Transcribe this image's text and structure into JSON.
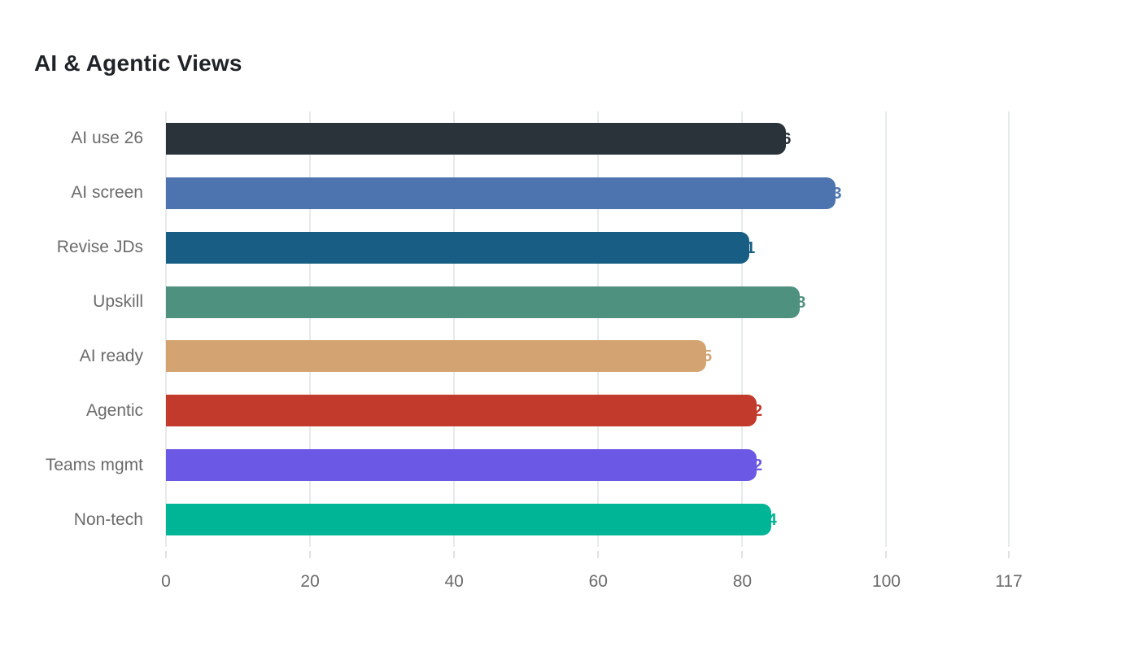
{
  "chart_data": {
    "type": "bar",
    "orientation": "horizontal",
    "title": "AI & Agentic Views",
    "categories": [
      "AI use 26",
      "AI screen",
      "Revise JDs",
      "Upskill",
      "AI ready",
      "Agentic",
      "Teams mgmt",
      "Non-tech"
    ],
    "values": [
      86,
      93,
      81,
      88,
      75,
      82,
      82,
      84
    ],
    "bar_colors": [
      "#2b333a",
      "#4d74ae",
      "#185e84",
      "#4f917f",
      "#d3a472",
      "#c23a2b",
      "#6b59e6",
      "#00b596"
    ],
    "value_label_style": "at-bar-end-same-color",
    "xlabel": "",
    "ylabel": "",
    "xlim": [
      0,
      117
    ],
    "xticks": [
      "0",
      "20",
      "40",
      "60",
      "80",
      "100",
      "117"
    ],
    "xtick_values": [
      0,
      20,
      40,
      60,
      80,
      100,
      117
    ],
    "grid": "vertical",
    "legend": "none"
  },
  "style": {
    "background": "#ffffff",
    "grid_color": "#e7eaea",
    "tick_color": "#dfe2e3",
    "axis_text_color": "#6b6b6b",
    "title_color": "#1f2227"
  }
}
